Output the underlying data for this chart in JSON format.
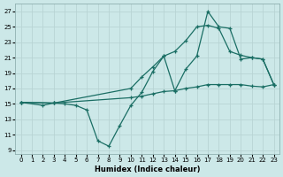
{
  "xlabel": "Humidex (Indice chaleur)",
  "bg_color": "#cce8e8",
  "grid_color": "#b8d4d4",
  "line_color": "#1a6e64",
  "xlim": [
    -0.5,
    23.5
  ],
  "ylim": [
    8.5,
    28
  ],
  "yticks": [
    9,
    11,
    13,
    15,
    17,
    19,
    21,
    23,
    25,
    27
  ],
  "xticks": [
    0,
    1,
    2,
    3,
    4,
    5,
    6,
    7,
    8,
    9,
    10,
    11,
    12,
    13,
    14,
    15,
    16,
    17,
    18,
    19,
    20,
    21,
    22,
    23
  ],
  "line1_x": [
    0,
    2,
    3,
    4,
    5,
    6,
    7,
    8,
    9,
    10,
    11,
    12,
    13,
    14,
    15,
    16,
    17,
    18,
    19,
    20,
    21,
    22,
    23
  ],
  "line1_y": [
    15.2,
    14.8,
    15.1,
    15.0,
    14.8,
    14.2,
    10.2,
    9.5,
    12.2,
    14.8,
    16.5,
    19.2,
    21.2,
    16.7,
    19.5,
    21.2,
    27.0,
    25.0,
    24.8,
    20.8,
    21.0,
    20.8,
    17.5
  ],
  "line2_x": [
    0,
    3,
    10,
    11,
    12,
    13,
    14,
    15,
    16,
    17,
    18,
    19,
    20,
    21,
    22,
    23
  ],
  "line2_y": [
    15.2,
    15.1,
    17.0,
    18.5,
    19.8,
    21.2,
    21.8,
    23.2,
    25.0,
    25.2,
    24.8,
    21.8,
    21.3,
    21.0,
    20.8,
    17.5
  ],
  "line3_x": [
    0,
    3,
    10,
    11,
    12,
    13,
    14,
    15,
    16,
    17,
    18,
    19,
    20,
    21,
    22,
    23
  ],
  "line3_y": [
    15.2,
    15.1,
    15.8,
    16.0,
    16.3,
    16.6,
    16.7,
    17.0,
    17.2,
    17.5,
    17.5,
    17.5,
    17.5,
    17.3,
    17.2,
    17.5
  ]
}
